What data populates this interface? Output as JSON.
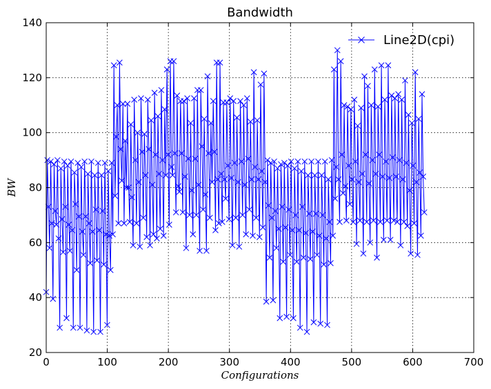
{
  "chart_data": {
    "type": "line",
    "title": "Bandwidth",
    "xlabel": "Configurations",
    "ylabel": "BW",
    "xlim": [
      0,
      700
    ],
    "ylim": [
      20,
      140
    ],
    "xticks": [
      0,
      100,
      200,
      300,
      400,
      500,
      600,
      700
    ],
    "yticks": [
      20,
      40,
      60,
      80,
      100,
      120,
      140
    ],
    "grid": true,
    "legend_position": "top-right",
    "series": [
      {
        "name": "Line2D(cpi)",
        "color": "#0000ff",
        "marker": "x",
        "y": [
          42.0,
          90.0,
          73.0,
          58.0,
          89.5,
          67.0,
          39.5,
          88.5,
          71.5,
          66.5,
          90.0,
          61.5,
          29.0,
          87.0,
          68.5,
          56.5,
          89.5,
          73.0,
          32.5,
          88.0,
          66.5,
          57.0,
          89.5,
          64.5,
          29.0,
          85.5,
          74.0,
          50.0,
          89.0,
          69.5,
          29.0,
          87.5,
          64.0,
          55.5,
          89.5,
          69.5,
          28.0,
          85.0,
          67.0,
          52.5,
          89.5,
          64.0,
          27.5,
          84.5,
          72.0,
          53.5,
          89.0,
          64.5,
          27.5,
          84.5,
          71.5,
          52.0,
          89.0,
          63.0,
          30.0,
          86.0,
          62.5,
          50.0,
          89.0,
          63.0,
          124.5,
          77.0,
          98.5,
          110.0,
          67.0,
          125.5,
          94.0,
          82.5,
          110.5,
          67.0,
          97.0,
          80.0,
          110.5,
          80.0,
          67.5,
          103.0,
          76.5,
          59.0,
          112.0,
          90.0,
          67.0,
          100.0,
          82.0,
          58.5,
          112.5,
          93.0,
          69.0,
          99.5,
          84.5,
          62.0,
          112.0,
          94.0,
          59.0,
          104.5,
          81.0,
          63.0,
          114.5,
          92.0,
          61.5,
          106.0,
          85.0,
          65.0,
          115.5,
          90.0,
          62.5,
          108.5,
          84.5,
          123.0,
          92.0,
          66.5,
          126.0,
          87.5,
          84.5,
          126.0,
          92.5,
          71.0,
          113.5,
          80.5,
          78.5,
          111.5,
          92.5,
          71.0,
          111.5,
          84.0,
          58.0,
          112.5,
          90.5,
          70.0,
          103.5,
          79.0,
          63.0,
          112.5,
          90.5,
          70.0,
          115.5,
          81.0,
          57.0,
          115.5,
          95.0,
          72.0,
          105.0,
          77.5,
          57.0,
          120.5,
          92.5,
          69.0,
          103.5,
          82.0,
          111.5,
          93.0,
          64.5,
          125.5,
          83.0,
          67.0,
          125.5,
          85.0,
          67.5,
          111.0,
          83.0,
          76.0,
          111.0,
          88.0,
          68.5,
          112.5,
          83.5,
          59.0,
          111.5,
          89.0,
          69.0,
          105.5,
          82.0,
          58.5,
          111.5,
          89.5,
          70.0,
          110.0,
          81.0,
          63.0,
          112.5,
          90.5,
          72.0,
          104.0,
          83.0,
          62.5,
          122.0,
          87.5,
          69.0,
          104.5,
          83.0,
          62.0,
          117.5,
          86.0,
          65.5,
          121.5,
          82.0,
          38.5,
          90.0,
          73.5,
          54.5,
          89.0,
          69.0,
          39.0,
          89.5,
          71.5,
          58.0,
          87.0,
          65.0,
          32.5,
          88.5,
          73.0,
          53.0,
          89.0,
          65.5,
          33.0,
          88.0,
          72.0,
          55.5,
          89.5,
          64.5,
          32.5,
          87.0,
          70.0,
          53.0,
          89.5,
          64.5,
          29.0,
          86.0,
          73.0,
          54.5,
          89.5,
          63.5,
          27.5,
          84.5,
          70.5,
          54.0,
          89.5,
          64.0,
          31.0,
          84.5,
          70.5,
          55.5,
          89.5,
          62.5,
          30.5,
          84.5,
          70.0,
          52.0,
          89.5,
          61.5,
          30.0,
          83.0,
          67.5,
          52.5,
          90.0,
          62.5,
          123.0,
          76.0,
          87.5,
          130.0,
          83.0,
          67.5,
          126.0,
          92.0,
          78.0,
          110.0,
          80.5,
          68.0,
          109.5,
          88.0,
          74.0,
          108.5,
          83.0,
          67.5,
          112.0,
          89.5,
          59.5,
          102.5,
          82.0,
          68.0,
          109.0,
          85.0,
          56.0,
          120.5,
          92.0,
          67.5,
          117.0,
          81.5,
          60.0,
          110.0,
          90.0,
          68.0,
          123.0,
          85.0,
          54.5,
          109.5,
          92.0,
          67.5,
          124.5,
          84.0,
          61.0,
          112.0,
          89.5,
          68.0,
          124.5,
          83.5,
          61.0,
          113.5,
          91.0,
          68.0,
          112.5,
          84.0,
          67.5,
          114.0,
          90.0,
          59.0,
          112.0,
          83.0,
          67.5,
          119.0,
          89.0,
          66.0,
          106.5,
          79.0,
          56.0,
          103.5,
          88.0,
          67.0,
          122.0,
          82.0,
          55.5,
          105.0,
          85.5,
          62.5,
          114.0,
          84.0,
          71.0
        ]
      }
    ]
  }
}
